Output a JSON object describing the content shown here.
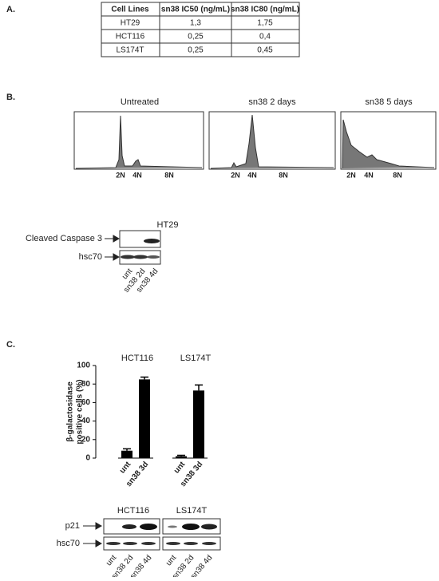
{
  "panel_a": {
    "label": "A.",
    "table": {
      "header": [
        "Cell Lines",
        "sn38 IC50 (ng/mL)",
        "sn38 IC80 (ng/mL)"
      ],
      "rows": [
        [
          "HT29",
          "1,3",
          "1,75"
        ],
        [
          "HCT116",
          "0,25",
          "0,4"
        ],
        [
          "LS174T",
          "0,25",
          "0,45"
        ]
      ]
    }
  },
  "panel_b": {
    "label": "B.",
    "histograms": [
      {
        "title": "Untreated",
        "ticks": [
          "2N",
          "4N",
          "8N"
        ]
      },
      {
        "title": "sn38 2 days",
        "ticks": [
          "2N",
          "4N",
          "8N"
        ]
      },
      {
        "title": "sn38 5 days",
        "ticks": [
          "2N",
          "4N",
          "8N"
        ]
      }
    ],
    "blot": {
      "title": "HT29",
      "rows": [
        "Cleaved Caspase 3",
        "hsc70"
      ],
      "lanes": [
        "unt",
        "sn38 2d",
        "sn38 4d"
      ]
    }
  },
  "panel_c": {
    "label": "C.",
    "blots": [
      {
        "title": "HCT116",
        "rows": [
          "p21",
          "hsc70"
        ],
        "lanes": [
          "unt",
          "sn38 2d",
          "sn38 4d"
        ]
      },
      {
        "title": "LS174T",
        "lanes": [
          "unt",
          "sn38 2d",
          "sn38 4d"
        ]
      }
    ]
  },
  "chart_data": {
    "type": "bar",
    "ylabel": [
      "β-galactosidase",
      "positive cells (%)"
    ],
    "categories": [
      "unt",
      "sn38 3d"
    ],
    "color": "#000000",
    "ylim": [
      0,
      100
    ],
    "yticks": [
      0,
      20,
      40,
      60,
      80,
      100
    ],
    "series": [
      {
        "name": "HCT116",
        "values": [
          8,
          85
        ],
        "errors": [
          2,
          2.5
        ]
      },
      {
        "name": "LS174T",
        "values": [
          2,
          73
        ],
        "errors": [
          1,
          6
        ]
      }
    ]
  }
}
